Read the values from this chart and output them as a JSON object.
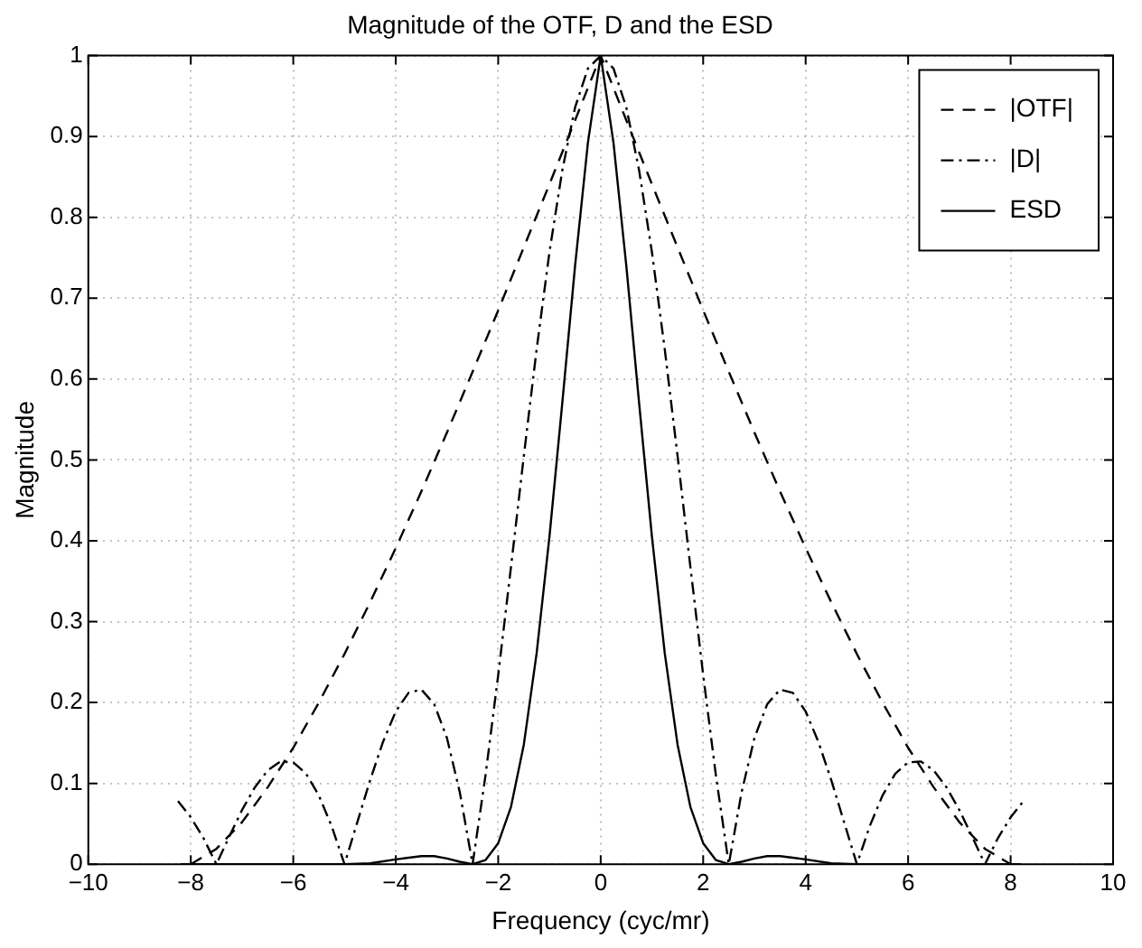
{
  "chart_data": {
    "type": "line",
    "title": "Magnitude of the OTF, D and the ESD",
    "xlabel": "Frequency (cyc/mr)",
    "ylabel": "Magnitude",
    "xlim": [
      -10,
      10
    ],
    "xticks": [
      -10,
      -8,
      -6,
      -4,
      -2,
      0,
      2,
      4,
      6,
      8,
      10
    ],
    "ylim": [
      0,
      1
    ],
    "yticks": [
      0,
      0.1,
      0.2,
      0.3,
      0.4,
      0.5,
      0.6,
      0.7,
      0.8,
      0.9,
      1
    ],
    "grid": true,
    "legend": "top right",
    "marker": "none",
    "series": [
      {
        "name": "|OTF|",
        "color": "#000000",
        "line_style": "dashed",
        "x": [
          -8,
          -7.5,
          -7,
          -6.5,
          -6,
          -5.5,
          -5,
          -4.5,
          -4,
          -3.5,
          -3,
          -2.5,
          -2,
          -1.5,
          -1,
          -0.5,
          0,
          0.5,
          1,
          1.5,
          2,
          2.5,
          3,
          3.5,
          4,
          4.5,
          5,
          5.5,
          6,
          6.5,
          7,
          7.5,
          8
        ],
        "values": [
          0,
          0.019,
          0.052,
          0.095,
          0.144,
          0.2,
          0.26,
          0.324,
          0.391,
          0.461,
          0.534,
          0.609,
          0.685,
          0.763,
          0.841,
          0.92,
          1,
          0.92,
          0.841,
          0.763,
          0.685,
          0.609,
          0.534,
          0.461,
          0.391,
          0.324,
          0.26,
          0.2,
          0.144,
          0.095,
          0.052,
          0.019,
          0
        ]
      },
      {
        "name": "|D|",
        "color": "#000000",
        "line_style": "dashdot",
        "x": [
          -8.25,
          -8,
          -7.75,
          -7.5,
          -7.25,
          -7,
          -6.75,
          -6.5,
          -6.25,
          -6,
          -5.75,
          -5.5,
          -5.25,
          -5,
          -4.75,
          -4.5,
          -4.25,
          -4,
          -3.75,
          -3.5,
          -3.25,
          -3,
          -2.75,
          -2.5,
          -2.25,
          -2,
          -1.75,
          -1.5,
          -1.25,
          -1,
          -0.75,
          -0.5,
          -0.25,
          0,
          0.25,
          0.5,
          0.75,
          1,
          1.25,
          1.5,
          1.75,
          2,
          2.25,
          2.5,
          2.75,
          3,
          3.25,
          3.5,
          3.75,
          4,
          4.25,
          4.5,
          4.75,
          5,
          5.25,
          5.5,
          5.75,
          6,
          6.25,
          6.5,
          6.75,
          7,
          7.25,
          7.5,
          7.75,
          8,
          8.25
        ],
        "values": [
          0.078,
          0.058,
          0.032,
          0,
          0.034,
          0.067,
          0.095,
          0.116,
          0.127,
          0.126,
          0.112,
          0.085,
          0.047,
          0,
          0.052,
          0.104,
          0.151,
          0.189,
          0.212,
          0.216,
          0.198,
          0.156,
          0.089,
          0,
          0.109,
          0.234,
          0.368,
          0.505,
          0.637,
          0.757,
          0.858,
          0.936,
          0.984,
          1,
          0.984,
          0.936,
          0.858,
          0.757,
          0.637,
          0.505,
          0.368,
          0.234,
          0.109,
          0,
          0.089,
          0.156,
          0.198,
          0.216,
          0.212,
          0.189,
          0.151,
          0.104,
          0.052,
          0,
          0.047,
          0.085,
          0.112,
          0.126,
          0.127,
          0.116,
          0.095,
          0.067,
          0.034,
          0,
          0.032,
          0.058,
          0.078
        ]
      },
      {
        "name": "ESD",
        "color": "#000000",
        "line_style": "solid",
        "x": [
          -8.2,
          -5,
          -4.5,
          -4,
          -3.75,
          -3.5,
          -3.25,
          -3,
          -2.75,
          -2.5,
          -2.25,
          -2,
          -1.75,
          -1.5,
          -1.25,
          -1,
          -0.75,
          -0.5,
          -0.25,
          0,
          0.25,
          0.5,
          0.75,
          1,
          1.25,
          1.5,
          1.75,
          2,
          2.25,
          2.5,
          2.75,
          3,
          3.25,
          3.5,
          3.75,
          4,
          4.5,
          5,
          8.2
        ],
        "values": [
          0,
          0,
          0.001,
          0.006,
          0.008,
          0.01,
          0.01,
          0.007,
          0.003,
          0,
          0.005,
          0.026,
          0.071,
          0.148,
          0.261,
          0.405,
          0.57,
          0.74,
          0.892,
          1,
          0.892,
          0.74,
          0.57,
          0.405,
          0.261,
          0.148,
          0.071,
          0.026,
          0.005,
          0,
          0.003,
          0.007,
          0.01,
          0.01,
          0.008,
          0.006,
          0.001,
          0,
          0
        ]
      }
    ]
  }
}
